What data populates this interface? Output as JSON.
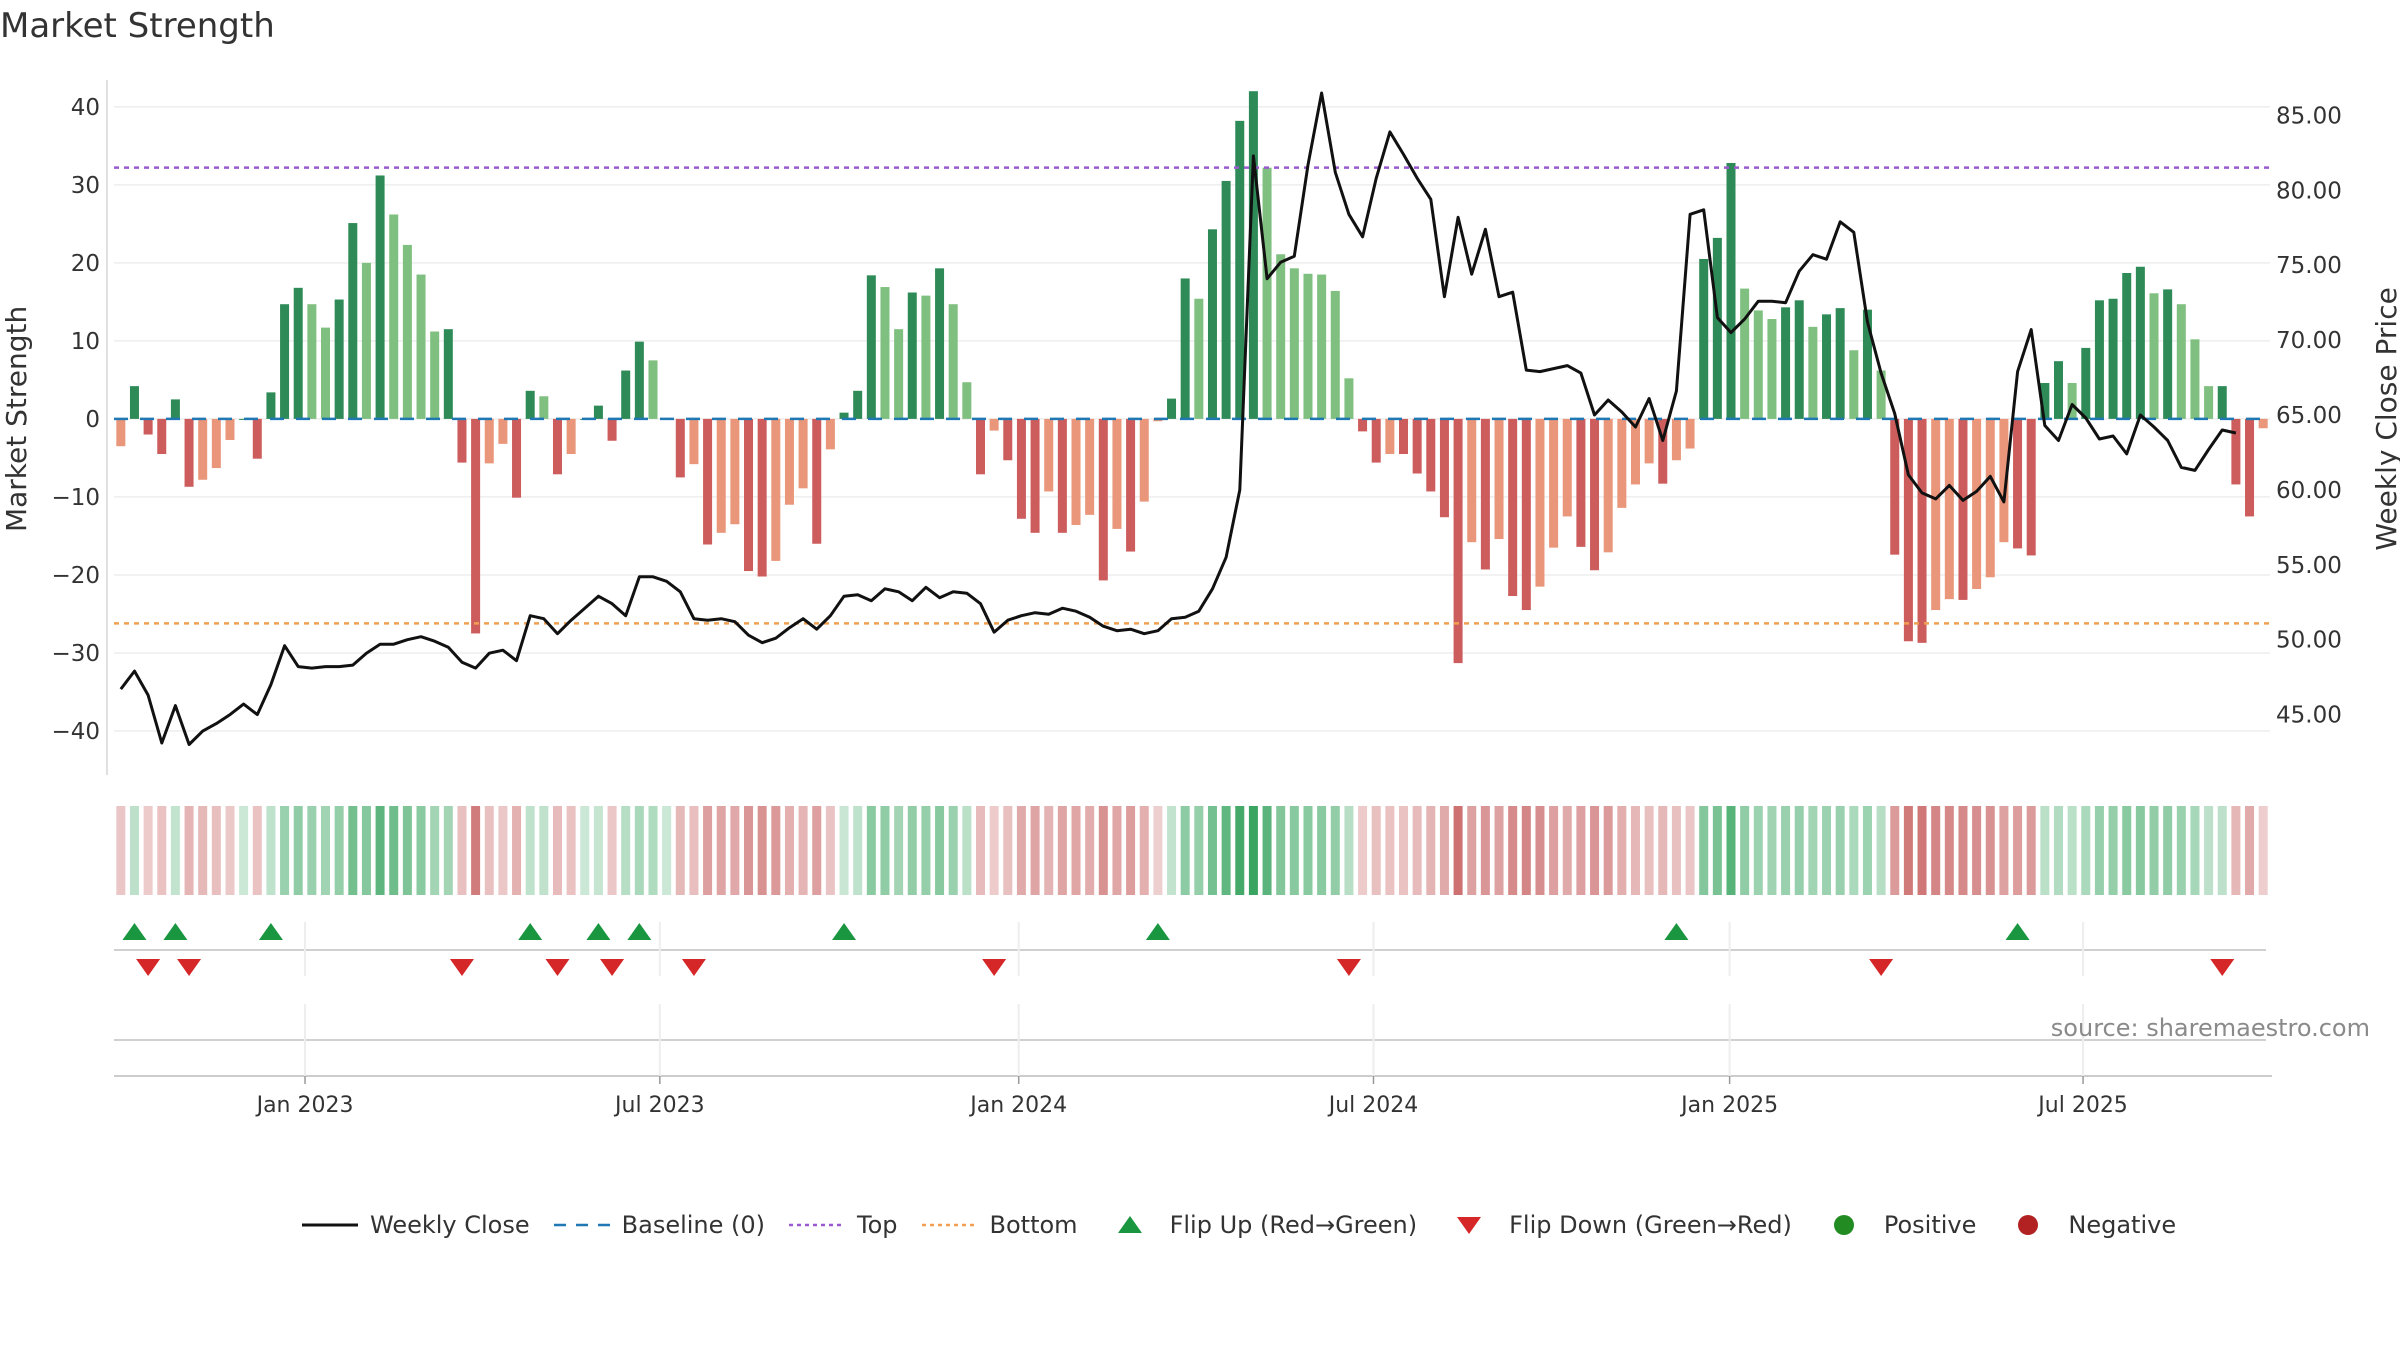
{
  "title": "Market Strength",
  "source": "source: sharemaestro.com",
  "colors": {
    "strong_green": "#2e8b57",
    "light_green": "#7fbf7f",
    "strong_red": "#cd5c5c",
    "light_red": "#e9967a",
    "line": "#111111",
    "baseline": "#1f77b4",
    "top": "#9b59d0",
    "bottom": "#f0a050",
    "flip_up": "#1a9641",
    "flip_down": "#d62728",
    "positive": "#228b22",
    "negative": "#b22222"
  },
  "legend": [
    {
      "key": "line",
      "label": "Weekly Close"
    },
    {
      "key": "baseline",
      "label": "Baseline (0)"
    },
    {
      "key": "top",
      "label": "Top"
    },
    {
      "key": "bottom",
      "label": "Bottom"
    },
    {
      "key": "flip_up",
      "label": "Flip Up (Red→Green)"
    },
    {
      "key": "flip_down",
      "label": "Flip Down (Green→Red)"
    },
    {
      "key": "positive",
      "label": "Positive"
    },
    {
      "key": "negative",
      "label": "Negative"
    }
  ],
  "chart_data": {
    "type": "bar",
    "ylabel": "Market Strength",
    "y2label": "Weekly Close Price",
    "ylim": [
      -45,
      46
    ],
    "y2lim": [
      41.3,
      88.7
    ],
    "yticks": [
      40,
      30,
      20,
      10,
      0,
      -10,
      -20,
      -30,
      -40
    ],
    "ytick_labels": [
      "40",
      "30",
      "20",
      "10",
      "0",
      "−10",
      "−20",
      "−30",
      "−40"
    ],
    "y2ticks": [
      85,
      80,
      75,
      70,
      65,
      60,
      55,
      50,
      45
    ],
    "y2tick_labels": [
      "85.00",
      "80.00",
      "75.00",
      "70.00",
      "65.00",
      "60.00",
      "55.00",
      "50.00",
      "45.00"
    ],
    "xtick_labels": [
      "Jan 2023",
      "Jul 2023",
      "Jan 2024",
      "Jul 2024",
      "Jan 2025",
      "Jul 2025"
    ],
    "xtick_weeks": [
      14,
      40,
      66.3,
      92.3,
      118.4,
      144.3
    ],
    "top_line": 32.2,
    "bottom_line": -26.2,
    "baseline": 0,
    "strength": [
      -3.5,
      4.2,
      -2,
      -4.5,
      2.5,
      -8.7,
      -7.8,
      -6.3,
      -2.7,
      0,
      -5.1,
      3.4,
      14.7,
      16.8,
      14.7,
      11.7,
      15.3,
      25.1,
      20,
      31.2,
      26.2,
      22.3,
      18.5,
      11.2,
      11.5,
      -5.6,
      -27.5,
      -5.7,
      -3.2,
      -10.1,
      3.6,
      2.9,
      -7.1,
      -4.5,
      0,
      1.7,
      -2.8,
      6.2,
      9.9,
      7.5,
      0,
      -7.5,
      -5.8,
      -16.1,
      -14.6,
      -13.5,
      -19.5,
      -20.2,
      -18.2,
      -11,
      -8.9,
      -16,
      -3.9,
      0.8,
      3.6,
      18.4,
      16.9,
      11.5,
      16.2,
      15.8,
      19.3,
      14.7,
      4.7,
      -7.1,
      -1.5,
      -5.3,
      -12.8,
      -14.6,
      -9.3,
      -14.6,
      -13.6,
      -12.3,
      -20.7,
      -14.1,
      -17,
      -10.6,
      -0.3,
      2.6,
      18,
      15.4,
      24.3,
      30.5,
      38.2,
      42,
      32.2,
      21.1,
      19.3,
      18.6,
      18.5,
      16.4,
      5.2,
      -1.6,
      -5.6,
      -4.5,
      -4.5,
      -7,
      -9.3,
      -12.6,
      -31.3,
      -15.8,
      -19.3,
      -15.4,
      -22.7,
      -24.5,
      -21.5,
      -16.5,
      -12.5,
      -16.4,
      -19.4,
      -17.1,
      -11.4,
      -8.4,
      -5.7,
      -8.3,
      -5.3,
      -3.8,
      20.5,
      23.2,
      32.8,
      16.7,
      13.9,
      12.8,
      14.3,
      15.2,
      11.8,
      13.4,
      14.2,
      8.8,
      14,
      6.2,
      -17.4,
      -28.5,
      -28.7,
      -24.5,
      -23.1,
      -23.2,
      -21.8,
      -20.3,
      -15.8,
      -16.6,
      -17.5,
      4.6,
      7.4,
      4.6,
      9.1,
      15.2,
      15.4,
      18.7,
      19.5,
      16.1,
      16.6,
      14.7,
      10.2,
      4.2,
      4.2,
      -8.4,
      -12.5,
      -1.2
    ],
    "weekly_close": [
      46.7,
      47.9,
      46.3,
      43.1,
      45.6,
      43,
      43.9,
      44.4,
      45,
      45.7,
      45,
      47,
      49.6,
      48.2,
      48.1,
      48.2,
      48.2,
      48.3,
      49.1,
      49.7,
      49.7,
      50,
      50.2,
      49.9,
      49.5,
      48.5,
      48.1,
      49.1,
      49.3,
      48.6,
      51.6,
      51.4,
      50.4,
      51.3,
      52.1,
      52.9,
      52.4,
      51.6,
      54.2,
      54.2,
      53.9,
      53.2,
      51.4,
      51.3,
      51.4,
      51.2,
      50.3,
      49.8,
      50.1,
      50.8,
      51.4,
      50.7,
      51.6,
      52.9,
      53,
      52.6,
      53.4,
      53.2,
      52.6,
      53.5,
      52.8,
      53.2,
      53.1,
      52.4,
      50.5,
      51.3,
      51.6,
      51.8,
      51.7,
      52.1,
      51.9,
      51.5,
      50.9,
      50.6,
      50.7,
      50.4,
      50.6,
      51.4,
      51.5,
      51.9,
      53.4,
      55.5,
      60,
      82.3,
      74.1,
      75.2,
      75.6,
      81.7,
      86.5,
      81.2,
      78.4,
      76.9,
      80.8,
      83.9,
      82.4,
      80.8,
      79.4,
      72.9,
      78.2,
      74.4,
      77.4,
      72.9,
      73.2,
      68,
      67.9,
      68.1,
      68.3,
      67.8,
      65,
      66,
      65.2,
      64.2,
      66.1,
      63.3,
      66.6,
      78.4,
      78.7,
      71.5,
      70.5,
      71.4,
      72.6,
      72.6,
      72.5,
      74.6,
      75.7,
      75.4,
      77.9,
      77.2,
      71.2,
      67.8,
      65.1,
      61,
      59.8,
      59.4,
      60.3,
      59.3,
      59.9,
      60.9,
      59.2,
      67.9,
      70.7,
      64.3,
      63.3,
      65.7,
      64.8,
      63.4,
      63.6,
      62.4,
      65,
      64.2,
      63.3,
      61.5,
      61.3,
      62.7,
      64,
      63.8
    ],
    "flip_up_weeks": [
      1,
      4,
      11,
      30,
      35,
      38,
      53,
      76,
      114,
      139
    ],
    "flip_down_weeks": [
      2,
      5,
      25,
      32,
      36,
      42,
      64,
      90,
      129,
      154
    ]
  }
}
